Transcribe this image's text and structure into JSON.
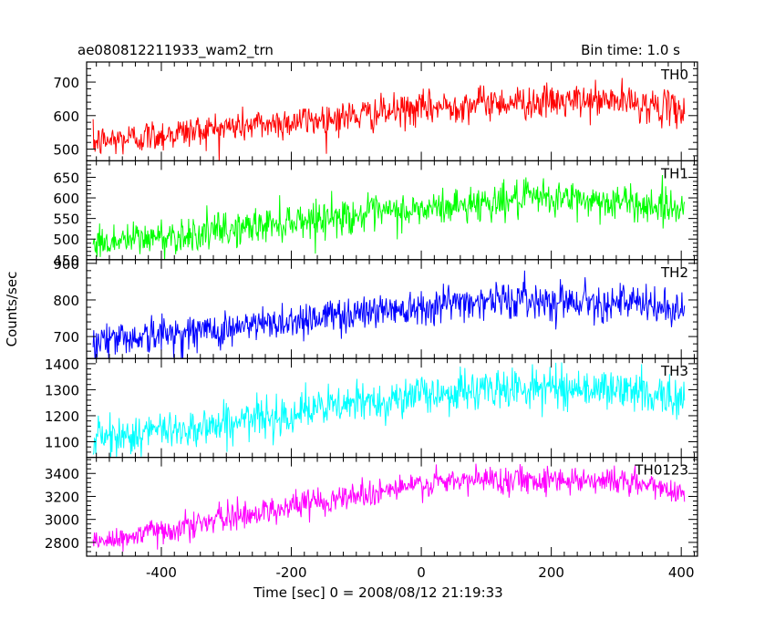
{
  "header": {
    "title": "ae080812211933_wam2_trn",
    "bin_time": "Bin time: 1.0 s"
  },
  "chart_data": {
    "type": "line",
    "xlabel": "Time [sec] 0 = 2008/08/12 21:19:33",
    "ylabel": "Counts/sec",
    "xlim": [
      -515,
      425
    ],
    "x_ticks": [
      -400,
      -200,
      0,
      200,
      400
    ],
    "x_range_data": [
      -505,
      405
    ],
    "grid": false,
    "panels": [
      {
        "name": "TH0",
        "color": "#ff0000",
        "ylim": [
          465,
          760
        ],
        "y_ticks": [
          500,
          600,
          700
        ],
        "trend": [
          [
            -505,
            520
          ],
          [
            -300,
            565
          ],
          [
            -150,
            590
          ],
          [
            0,
            620
          ],
          [
            100,
            640
          ],
          [
            200,
            640
          ],
          [
            300,
            645
          ],
          [
            405,
            615
          ]
        ],
        "noise_sd": 25
      },
      {
        "name": "TH1",
        "color": "#00ff00",
        "ylim": [
          450,
          690
        ],
        "y_ticks": [
          450,
          500,
          550,
          600,
          650
        ],
        "trend": [
          [
            -505,
            490
          ],
          [
            -300,
            520
          ],
          [
            -200,
            545
          ],
          [
            0,
            570
          ],
          [
            100,
            590
          ],
          [
            200,
            600
          ],
          [
            300,
            590
          ],
          [
            405,
            575
          ]
        ],
        "noise_sd": 22
      },
      {
        "name": "TH2",
        "color": "#0000ff",
        "ylim": [
          640,
          910
        ],
        "y_ticks": [
          700,
          800,
          900
        ],
        "trend": [
          [
            -505,
            690
          ],
          [
            -300,
            720
          ],
          [
            -150,
            755
          ],
          [
            0,
            785
          ],
          [
            100,
            800
          ],
          [
            200,
            800
          ],
          [
            300,
            795
          ],
          [
            405,
            770
          ]
        ],
        "noise_sd": 25
      },
      {
        "name": "TH3",
        "color": "#00ffff",
        "ylim": [
          1040,
          1420
        ],
        "y_ticks": [
          1100,
          1200,
          1300,
          1400
        ],
        "trend": [
          [
            -505,
            1110
          ],
          [
            -300,
            1170
          ],
          [
            -150,
            1230
          ],
          [
            0,
            1280
          ],
          [
            100,
            1300
          ],
          [
            200,
            1310
          ],
          [
            300,
            1300
          ],
          [
            405,
            1270
          ]
        ],
        "noise_sd": 38
      },
      {
        "name": "TH0123",
        "color": "#ff00ff",
        "ylim": [
          2680,
          3540
        ],
        "y_ticks": [
          2800,
          3000,
          3200,
          3400
        ],
        "trend": [
          [
            -505,
            2790
          ],
          [
            -300,
            3010
          ],
          [
            -150,
            3170
          ],
          [
            0,
            3300
          ],
          [
            100,
            3350
          ],
          [
            200,
            3350
          ],
          [
            300,
            3340
          ],
          [
            405,
            3240
          ]
        ],
        "noise_sd": 60
      }
    ]
  }
}
